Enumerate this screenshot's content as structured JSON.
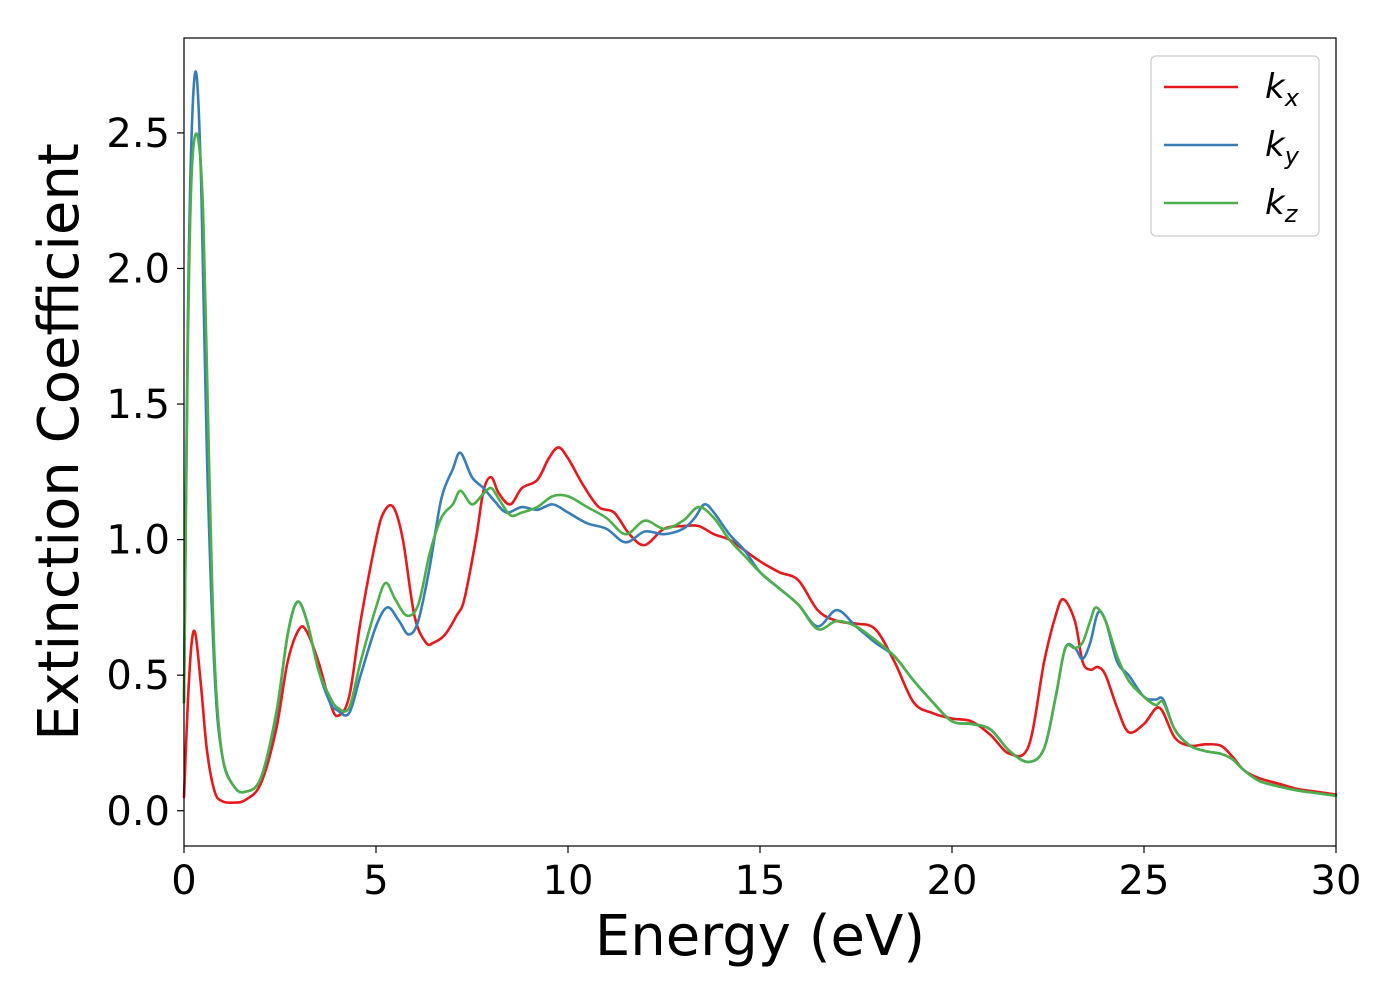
{
  "chart_data": {
    "type": "line",
    "xlabel": "Energy (eV)",
    "ylabel": "Extinction Coefficient",
    "xlim": [
      0,
      30
    ],
    "ylim": [
      -0.13,
      2.85
    ],
    "xticks": [
      0,
      5,
      10,
      15,
      20,
      25,
      30
    ],
    "xtick_labels": [
      "0",
      "5",
      "10",
      "15",
      "20",
      "25",
      "30"
    ],
    "yticks": [
      0.0,
      0.5,
      1.0,
      1.5,
      2.0,
      2.5
    ],
    "ytick_labels": [
      "0.0",
      "0.5",
      "1.0",
      "1.5",
      "2.0",
      "2.5"
    ],
    "grid": false,
    "legend_position": "top-right",
    "series": [
      {
        "name": "k",
        "subscript": "x",
        "color": "#e41a1c",
        "x": [
          0,
          0.1,
          0.2,
          0.3,
          0.45,
          0.6,
          0.8,
          1.0,
          1.3,
          1.6,
          2.0,
          2.4,
          2.7,
          3.0,
          3.2,
          3.5,
          3.8,
          4.0,
          4.3,
          4.6,
          5.0,
          5.2,
          5.45,
          5.7,
          6.0,
          6.3,
          6.5,
          6.8,
          7.1,
          7.3,
          7.6,
          7.8,
          8.0,
          8.2,
          8.5,
          8.8,
          9.2,
          9.5,
          9.75,
          10.0,
          10.4,
          10.8,
          11.2,
          11.6,
          12.0,
          12.5,
          13.0,
          13.4,
          13.8,
          14.2,
          14.6,
          15.0,
          15.5,
          16.0,
          16.5,
          17.0,
          17.5,
          18.0,
          18.5,
          19.0,
          19.5,
          20.0,
          20.5,
          21.0,
          21.5,
          22.0,
          22.4,
          22.7,
          22.9,
          23.2,
          23.4,
          23.6,
          23.8,
          24.0,
          24.3,
          24.6,
          25.0,
          25.4,
          25.8,
          26.2,
          26.6,
          27.0,
          27.3,
          27.6,
          28.0,
          28.5,
          29.0,
          29.5,
          30.0
        ],
        "y": [
          0.05,
          0.4,
          0.62,
          0.65,
          0.45,
          0.22,
          0.07,
          0.035,
          0.03,
          0.04,
          0.1,
          0.3,
          0.55,
          0.67,
          0.66,
          0.55,
          0.4,
          0.35,
          0.42,
          0.7,
          1.0,
          1.1,
          1.12,
          1.0,
          0.72,
          0.62,
          0.62,
          0.65,
          0.72,
          0.78,
          1.0,
          1.18,
          1.23,
          1.17,
          1.13,
          1.19,
          1.22,
          1.3,
          1.34,
          1.3,
          1.2,
          1.12,
          1.1,
          1.02,
          0.98,
          1.04,
          1.05,
          1.05,
          1.02,
          1.0,
          0.96,
          0.92,
          0.88,
          0.85,
          0.74,
          0.7,
          0.69,
          0.67,
          0.55,
          0.4,
          0.36,
          0.34,
          0.33,
          0.28,
          0.21,
          0.24,
          0.55,
          0.72,
          0.78,
          0.7,
          0.55,
          0.52,
          0.53,
          0.5,
          0.38,
          0.29,
          0.32,
          0.38,
          0.27,
          0.24,
          0.245,
          0.24,
          0.2,
          0.15,
          0.12,
          0.1,
          0.08,
          0.07,
          0.06
        ]
      },
      {
        "name": "k",
        "subscript": "y",
        "color": "#377eb8",
        "x": [
          0,
          0.1,
          0.2,
          0.32,
          0.45,
          0.6,
          0.8,
          1.0,
          1.3,
          1.6,
          2.0,
          2.4,
          2.7,
          2.95,
          3.2,
          3.5,
          3.8,
          4.0,
          4.3,
          4.6,
          5.0,
          5.3,
          5.6,
          5.85,
          6.1,
          6.4,
          6.7,
          7.0,
          7.2,
          7.5,
          7.8,
          8.1,
          8.4,
          8.8,
          9.2,
          9.6,
          10.0,
          10.5,
          11.0,
          11.5,
          12.0,
          12.5,
          13.0,
          13.3,
          13.55,
          13.8,
          14.2,
          14.6,
          15.0,
          15.5,
          16.0,
          16.5,
          17.0,
          17.5,
          18.0,
          18.5,
          19.0,
          19.5,
          20.0,
          20.5,
          21.0,
          21.5,
          22.0,
          22.4,
          22.7,
          22.95,
          23.2,
          23.4,
          23.6,
          23.8,
          24.0,
          24.3,
          24.6,
          25.0,
          25.3,
          25.5,
          25.8,
          26.2,
          26.6,
          27.0,
          27.3,
          27.6,
          28.0,
          28.5,
          29.0,
          29.5,
          30.0
        ],
        "y": [
          0.4,
          1.8,
          2.5,
          2.72,
          2.3,
          1.3,
          0.5,
          0.2,
          0.09,
          0.07,
          0.12,
          0.35,
          0.65,
          0.77,
          0.7,
          0.52,
          0.4,
          0.37,
          0.36,
          0.5,
          0.68,
          0.75,
          0.7,
          0.65,
          0.7,
          0.9,
          1.15,
          1.26,
          1.32,
          1.23,
          1.19,
          1.14,
          1.1,
          1.12,
          1.11,
          1.13,
          1.1,
          1.06,
          1.04,
          0.99,
          1.03,
          1.02,
          1.04,
          1.08,
          1.13,
          1.1,
          1.02,
          0.96,
          0.88,
          0.82,
          0.76,
          0.68,
          0.74,
          0.68,
          0.62,
          0.57,
          0.48,
          0.4,
          0.33,
          0.32,
          0.3,
          0.22,
          0.18,
          0.23,
          0.42,
          0.6,
          0.6,
          0.56,
          0.62,
          0.73,
          0.7,
          0.55,
          0.5,
          0.42,
          0.41,
          0.41,
          0.3,
          0.24,
          0.22,
          0.21,
          0.19,
          0.15,
          0.11,
          0.09,
          0.075,
          0.065,
          0.055
        ]
      },
      {
        "name": "k",
        "subscript": "z",
        "color": "#4daf4a",
        "x": [
          0,
          0.1,
          0.2,
          0.35,
          0.5,
          0.65,
          0.8,
          1.0,
          1.3,
          1.6,
          2.0,
          2.4,
          2.7,
          2.95,
          3.2,
          3.5,
          3.8,
          4.0,
          4.3,
          4.6,
          5.0,
          5.25,
          5.5,
          5.8,
          6.1,
          6.4,
          6.7,
          7.0,
          7.2,
          7.5,
          7.8,
          8.0,
          8.2,
          8.5,
          8.8,
          9.2,
          9.6,
          10.0,
          10.5,
          11.0,
          11.5,
          12.0,
          12.5,
          13.0,
          13.4,
          13.8,
          14.2,
          14.6,
          15.0,
          15.5,
          16.0,
          16.5,
          17.0,
          17.5,
          18.0,
          18.5,
          19.0,
          19.5,
          20.0,
          20.5,
          21.0,
          21.5,
          22.0,
          22.4,
          22.7,
          22.95,
          23.2,
          23.4,
          23.6,
          23.75,
          24.0,
          24.3,
          24.6,
          25.0,
          25.3,
          25.5,
          25.8,
          26.2,
          26.6,
          27.0,
          27.3,
          27.6,
          28.0,
          28.5,
          29.0,
          29.5,
          30.0
        ],
        "y": [
          0.4,
          1.7,
          2.35,
          2.49,
          2.2,
          1.3,
          0.55,
          0.2,
          0.09,
          0.07,
          0.12,
          0.36,
          0.65,
          0.77,
          0.7,
          0.52,
          0.42,
          0.38,
          0.38,
          0.55,
          0.75,
          0.84,
          0.78,
          0.72,
          0.76,
          0.95,
          1.08,
          1.13,
          1.18,
          1.13,
          1.17,
          1.19,
          1.15,
          1.09,
          1.1,
          1.12,
          1.16,
          1.16,
          1.12,
          1.08,
          1.02,
          1.07,
          1.04,
          1.07,
          1.12,
          1.08,
          1.0,
          0.94,
          0.88,
          0.82,
          0.76,
          0.67,
          0.7,
          0.68,
          0.63,
          0.57,
          0.48,
          0.4,
          0.33,
          0.32,
          0.3,
          0.22,
          0.18,
          0.23,
          0.42,
          0.6,
          0.6,
          0.62,
          0.7,
          0.75,
          0.7,
          0.57,
          0.48,
          0.42,
          0.39,
          0.4,
          0.3,
          0.24,
          0.22,
          0.21,
          0.19,
          0.15,
          0.11,
          0.09,
          0.075,
          0.065,
          0.055
        ]
      }
    ]
  }
}
